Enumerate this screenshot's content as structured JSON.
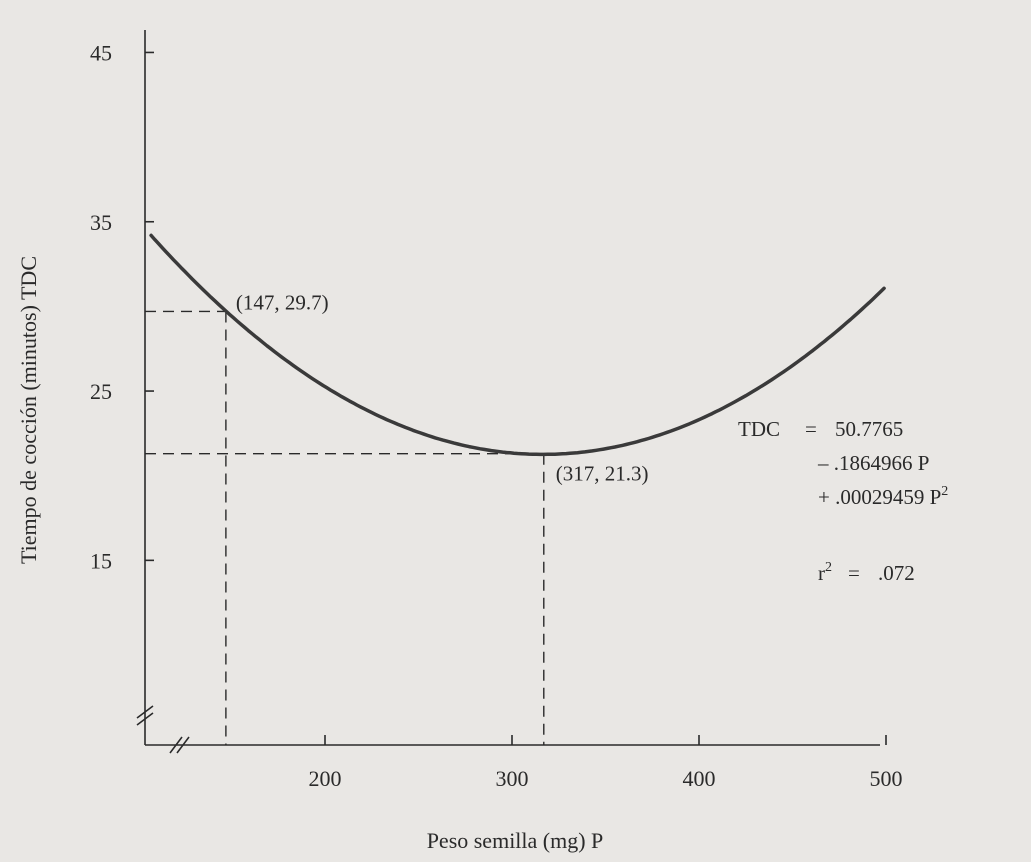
{
  "chart_data": {
    "type": "line",
    "title": "",
    "xlabel": "Peso semilla (mg) P",
    "ylabel": "Tiempo de cocción (minutos) TDC",
    "xlim": [
      107,
      500
    ],
    "ylim": [
      5,
      45
    ],
    "x_ticks": [
      200,
      300,
      400,
      500
    ],
    "x_tick_labels": [
      "200",
      "300",
      "400",
      "500"
    ],
    "y_ticks": [
      15,
      25,
      35,
      45
    ],
    "y_tick_labels": [
      "15",
      "25",
      "35",
      "45"
    ],
    "axis_breaks": true,
    "grid": false,
    "series": [
      {
        "equation": {
          "a": 50.7765,
          "b": -0.1864966,
          "c": 0.00029459
        },
        "x_range": [
          107,
          500
        ],
        "color": "#3a3a3a"
      }
    ],
    "annotations": [
      {
        "x": 147,
        "y": 29.7,
        "label": "(147, 29.7)"
      },
      {
        "x": 317,
        "y": 21.3,
        "label": "(317, 21.3)"
      }
    ],
    "equation_text": {
      "line1_left": "TDC",
      "line1_eq": "=",
      "line1_value": "50.7765",
      "line2": "– .1864966 P",
      "line3_base": "+ .00029459 P",
      "line3_sup": "2",
      "r2_base": "r",
      "r2_sup": "2",
      "r2_eq": "=",
      "r2_value": ".072"
    }
  }
}
